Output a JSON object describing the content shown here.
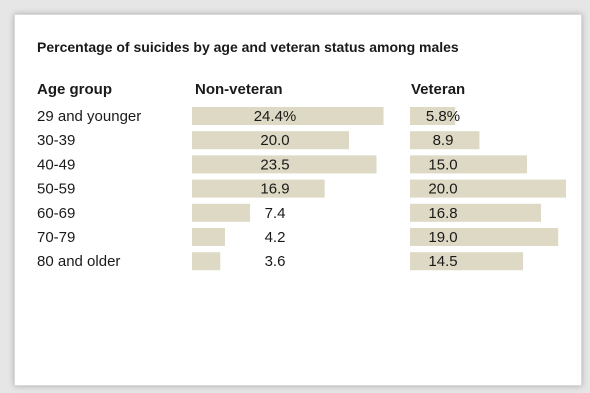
{
  "title": "Percentage of suicides by age and veteran status among males",
  "headers": {
    "age_group": "Age group",
    "non_veteran": "Non-veteran",
    "veteran": "Veteran"
  },
  "colors": {
    "bar": "#ddd9c4",
    "text": "#1a1a1a",
    "background": "#ffffff"
  },
  "chart_data": {
    "type": "bar",
    "orientation": "horizontal",
    "title": "Percentage of suicides by age and veteran status among males",
    "categories": [
      "29 and younger",
      "30-39",
      "40-49",
      "50-59",
      "60-69",
      "70-79",
      "80 and older"
    ],
    "series": [
      {
        "name": "Non-veteran",
        "values": [
          24.4,
          20.0,
          23.5,
          16.9,
          7.4,
          4.2,
          3.6
        ],
        "labels": [
          "24.4%",
          "20.0",
          "23.5",
          "16.9",
          "7.4",
          "4.2",
          "3.6"
        ]
      },
      {
        "name": "Veteran",
        "values": [
          5.8,
          8.9,
          15.0,
          20.0,
          16.8,
          19.0,
          14.5
        ],
        "labels": [
          "5.8%",
          "8.9",
          "15.0",
          "20.0",
          "16.8",
          "19.0",
          "14.5"
        ]
      }
    ],
    "grid": false,
    "legend": "none"
  }
}
